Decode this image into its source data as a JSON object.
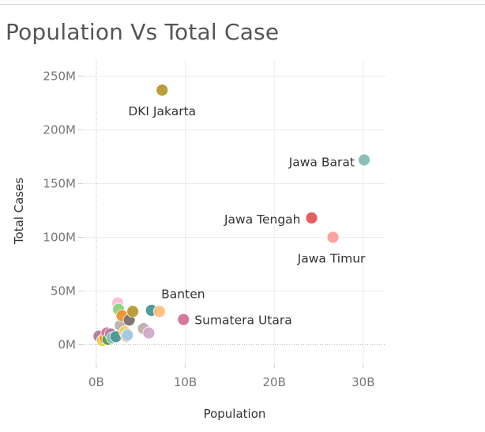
{
  "title": "Population Vs Total Case",
  "chart_data": {
    "type": "scatter",
    "title": "Population Vs Total Case",
    "xlabel": "Population",
    "ylabel": "Total Cases",
    "xlim": [
      -1.5,
      32.5
    ],
    "ylim": [
      -18,
      265
    ],
    "x_unit": "B",
    "y_unit": "M",
    "x_ticks": [
      {
        "value": 0,
        "label": "0B"
      },
      {
        "value": 10,
        "label": "10B"
      },
      {
        "value": 20,
        "label": "20B"
      },
      {
        "value": 30,
        "label": "30B"
      }
    ],
    "y_ticks": [
      {
        "value": 0,
        "label": "0M"
      },
      {
        "value": 50,
        "label": "50M"
      },
      {
        "value": 100,
        "label": "100M"
      },
      {
        "value": 150,
        "label": "150M"
      },
      {
        "value": 200,
        "label": "200M"
      },
      {
        "value": 250,
        "label": "250M"
      }
    ],
    "grid": true,
    "points": [
      {
        "x": 0.3,
        "y": 8.0,
        "color": "#b07aa1"
      },
      {
        "x": 0.7,
        "y": 4.0,
        "color": "#edc948"
      },
      {
        "x": 1.0,
        "y": 6.0,
        "color": "#f28e2b"
      },
      {
        "x": 1.2,
        "y": 11.0,
        "color": "#d37295"
      },
      {
        "x": 1.3,
        "y": 5.0,
        "color": "#59a14f"
      },
      {
        "x": 1.6,
        "y": 10.0,
        "color": "#b07aa1"
      },
      {
        "x": 1.8,
        "y": 6.5,
        "color": "#86bcb6"
      },
      {
        "x": 2.2,
        "y": 7.5,
        "color": "#499894"
      },
      {
        "x": 2.4,
        "y": 39.0,
        "color": "#fabfd2"
      },
      {
        "x": 2.5,
        "y": 33.0,
        "color": "#8cd17d"
      },
      {
        "x": 2.7,
        "y": 18.0,
        "color": "#bab0ac"
      },
      {
        "x": 2.9,
        "y": 27.0,
        "color": "#f28e2b"
      },
      {
        "x": 3.2,
        "y": 12.0,
        "color": "#f1ce63"
      },
      {
        "x": 3.4,
        "y": 8.0,
        "color": "#e49444"
      },
      {
        "x": 3.5,
        "y": 9.0,
        "color": "#a0cbe8"
      },
      {
        "x": 3.7,
        "y": 23.0,
        "color": "#79706e"
      },
      {
        "x": 4.1,
        "y": 31.0,
        "color": "#b6992d"
      },
      {
        "x": 5.3,
        "y": 15.0,
        "color": "#bab0ac"
      },
      {
        "x": 5.9,
        "y": 11.0,
        "color": "#d4a6c8"
      },
      {
        "x": 6.2,
        "y": 32.0,
        "color": "#499894"
      },
      {
        "x": 7.1,
        "y": 31.0,
        "color": "#ffbe7d"
      },
      {
        "x": 9.8,
        "y": 23.5,
        "color": "#d37295"
      },
      {
        "x": 7.4,
        "y": 237.0,
        "color": "#b6992d"
      },
      {
        "x": 24.2,
        "y": 118.0,
        "color": "#e15759"
      },
      {
        "x": 26.6,
        "y": 100.0,
        "color": "#ff9d9a"
      },
      {
        "x": 30.1,
        "y": 172.0,
        "color": "#86bcb6"
      }
    ],
    "annotations": [
      {
        "text": "DKI Jakarta",
        "x": 7.4,
        "y": 237.0
      },
      {
        "text": "Jawa Barat",
        "x": 30.1,
        "y": 172.0
      },
      {
        "text": "Jawa Tengah",
        "x": 24.2,
        "y": 118.0
      },
      {
        "text": "Jawa Timur",
        "x": 26.6,
        "y": 100.0
      },
      {
        "text": "Banten",
        "x": 7.1,
        "y": 31.0
      },
      {
        "text": "Sumatera Utara",
        "x": 9.8,
        "y": 23.5
      }
    ]
  }
}
